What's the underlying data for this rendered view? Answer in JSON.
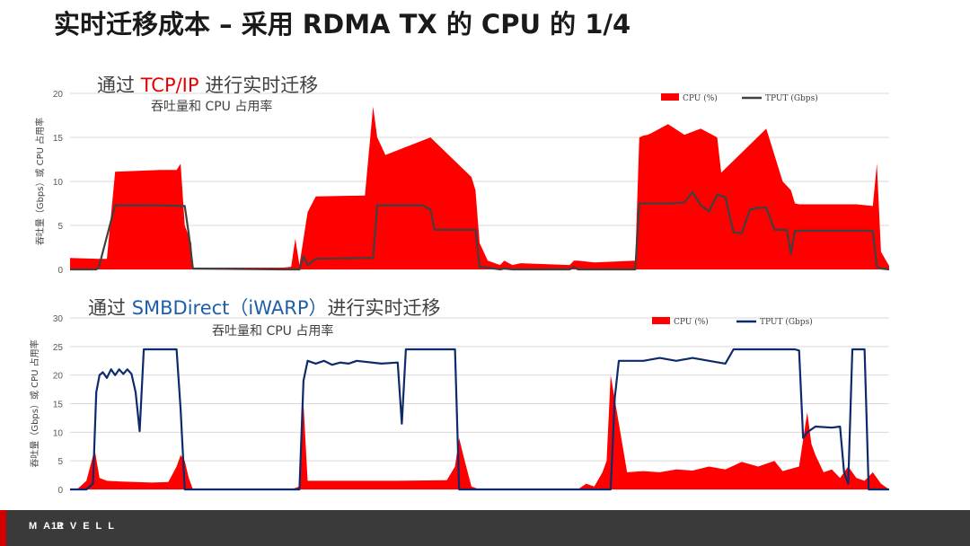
{
  "slide": {
    "title": "实时迁移成本 – 采用 RDMA TX 的 CPU 的 1/4",
    "brand": "MARVELL",
    "page_number": "12"
  },
  "chart_data": [
    {
      "type": "area",
      "title_prefix": "通过 ",
      "title_highlight": "TCP/IP",
      "title_suffix": " 进行实时迁移",
      "subtitle": "吞吐量和 CPU 占用率",
      "ylabel": "吞吐量（Gbps）或 CPU 占用率",
      "ylim": [
        0,
        20
      ],
      "yticks": [
        0,
        5,
        10,
        15,
        20
      ],
      "grid": true,
      "legend_position": "top-right",
      "title_highlight_color": "#e60000",
      "series": [
        {
          "name": "CPU (%)",
          "style": "area",
          "color": "#ff0000",
          "x": [
            0,
            3.5,
            4.5,
            5.5,
            11,
            13,
            13.5,
            14,
            14.8,
            15,
            26,
            27,
            27.5,
            28,
            29,
            30,
            36,
            37,
            37.5,
            38,
            38.5,
            44,
            49,
            49.5,
            50,
            51,
            52.5,
            53,
            54,
            55,
            61,
            61.5,
            62,
            64,
            69,
            69.5,
            70,
            70.5,
            71,
            73,
            75,
            77,
            79,
            79.5,
            85,
            87,
            88,
            88.5,
            89,
            92,
            96,
            98,
            98.5,
            99,
            100
          ],
          "y": [
            1.3,
            1.2,
            1.2,
            11.1,
            11.3,
            11.3,
            12,
            5,
            3,
            0.2,
            0.2,
            0.3,
            3.5,
            0.5,
            6.5,
            8.3,
            8.4,
            18.5,
            15,
            14,
            13,
            15,
            10.5,
            9,
            3,
            1,
            0.5,
            1,
            0.5,
            0.7,
            0.5,
            1,
            1,
            0.8,
            1,
            15,
            15.2,
            15.3,
            15.5,
            16.5,
            15.3,
            16,
            15,
            11,
            16,
            10,
            9,
            7.5,
            7.4,
            7.4,
            7.4,
            7.2,
            12,
            2,
            0.4
          ]
        },
        {
          "name": "TPUT (Gbps)",
          "style": "line",
          "color": "#404040",
          "x": [
            0,
            3.2,
            3.5,
            5.5,
            10,
            14,
            14.5,
            15,
            26,
            27,
            28,
            28.5,
            29,
            30,
            36,
            37,
            37.5,
            43,
            44,
            44.5,
            45,
            49,
            49.5,
            50,
            51,
            52.5,
            53,
            54,
            55,
            61,
            61.5,
            62,
            64,
            69,
            69.5,
            70,
            70.5,
            71,
            73,
            75,
            76,
            77,
            78,
            79,
            80,
            81,
            82,
            83,
            84,
            85,
            86,
            87,
            87.5,
            88,
            88.5,
            89,
            92,
            96,
            98,
            98.5,
            99,
            100
          ],
          "y": [
            0,
            0,
            0.2,
            7.3,
            7.3,
            7.2,
            4,
            0.1,
            0,
            0,
            0,
            1.5,
            0.5,
            1.2,
            1.3,
            1.3,
            7.3,
            7.3,
            6.8,
            4.5,
            4.5,
            4.5,
            4.5,
            0.3,
            0.2,
            0,
            0.1,
            0,
            0,
            0,
            0.3,
            0,
            0,
            0,
            7.5,
            7.5,
            7.5,
            7.5,
            7.5,
            7.6,
            8.8,
            7.3,
            6.6,
            8.5,
            8.2,
            4.2,
            4.1,
            6.8,
            7,
            7,
            4.5,
            4.5,
            4.5,
            1.8,
            4.4,
            4.4,
            4.4,
            4.4,
            4.4,
            0.3,
            0.1,
            0
          ]
        }
      ]
    },
    {
      "type": "area",
      "title_prefix": "通过 ",
      "title_highlight": "SMBDirect（iWARP）",
      "title_suffix": "进行实时迁移",
      "subtitle": "吞吐量和 CPU 占用率",
      "ylabel": "吞吐量（Gbps）或 CPU 占用率",
      "ylim": [
        0,
        30
      ],
      "yticks": [
        0,
        5,
        10,
        15,
        20,
        25,
        30
      ],
      "grid": true,
      "legend_position": "top-right",
      "title_highlight_color": "#1f5fa8",
      "series": [
        {
          "name": "CPU (%)",
          "style": "area",
          "color": "#ff0000",
          "x": [
            0,
            1,
            2,
            3,
            3.6,
            4.5,
            6,
            8,
            10,
            12,
            13,
            13.5,
            14,
            14.5,
            15,
            26,
            27,
            28,
            28.5,
            29,
            30,
            40,
            46,
            47,
            47.5,
            48,
            49,
            50,
            62,
            63,
            64,
            65,
            65.5,
            66,
            68,
            70,
            72,
            74,
            76,
            78,
            80,
            82,
            84,
            86,
            87,
            89,
            90,
            90.5,
            91,
            92,
            93,
            94,
            95,
            96,
            97,
            98,
            99,
            100
          ],
          "y": [
            0,
            0.2,
            1.5,
            7,
            2,
            1.5,
            1.4,
            1.3,
            1.2,
            1.3,
            4,
            6,
            5,
            2,
            0,
            0,
            0,
            0.5,
            15,
            1.5,
            1.5,
            1.5,
            1.6,
            4,
            9,
            6,
            0.5,
            0,
            0,
            1,
            0.5,
            3,
            5,
            20,
            3,
            3.2,
            3,
            3.5,
            3.3,
            4,
            3.5,
            4.8,
            4,
            5,
            3.2,
            4,
            13.5,
            8,
            6,
            3,
            3.5,
            2,
            4,
            2,
            1.5,
            3,
            1,
            0
          ]
        },
        {
          "name": "TPUT (Gbps)",
          "style": "line",
          "color": "#0d2a6b",
          "x": [
            0,
            2,
            2.8,
            3.2,
            3.6,
            4,
            4.5,
            5,
            5.5,
            6,
            6.5,
            7,
            7.5,
            8,
            8.5,
            9,
            13,
            13.5,
            14,
            14.5,
            28,
            28.5,
            29,
            30,
            31,
            32,
            33,
            34,
            35,
            38,
            40,
            40.5,
            41,
            46,
            46.5,
            47,
            47.5,
            66,
            66.5,
            67,
            68,
            70,
            72,
            74,
            76,
            78,
            80,
            81,
            81.5,
            82,
            84,
            86,
            88,
            88.5,
            89,
            89.5,
            90,
            91,
            93,
            94,
            94.5,
            95,
            95.5,
            96,
            97,
            97.5,
            98,
            100
          ],
          "y": [
            0,
            0,
            1,
            17,
            20,
            20.5,
            19.5,
            21,
            20,
            21,
            20.2,
            21,
            20.2,
            17,
            10.2,
            24.5,
            24.5,
            14,
            0,
            0,
            0,
            19,
            22.5,
            22,
            22.5,
            21.8,
            22.2,
            22,
            22.5,
            22,
            22.2,
            11.5,
            24.5,
            24.5,
            24.5,
            24.5,
            0,
            0,
            16,
            22.5,
            22.5,
            22.5,
            23,
            22.5,
            23,
            22.5,
            22,
            24.5,
            24.5,
            24.5,
            24.5,
            24.5,
            24.5,
            24.5,
            24.3,
            9,
            10,
            11,
            10.8,
            11,
            3,
            1,
            24.5,
            24.5,
            24.5,
            0,
            0,
            0
          ]
        }
      ]
    }
  ]
}
